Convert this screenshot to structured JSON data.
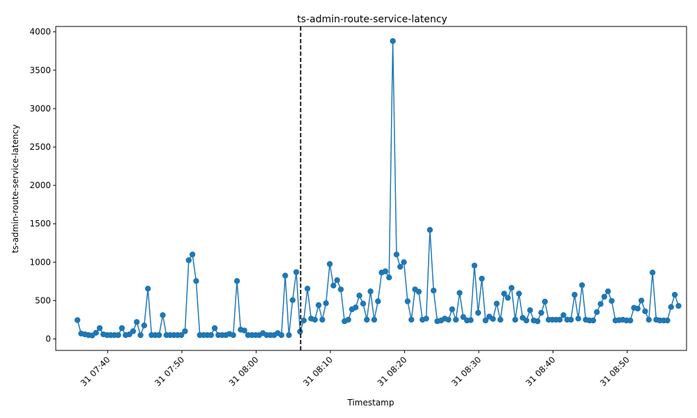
{
  "chart_data": {
    "type": "line",
    "title": "ts-admin-route-service-latency",
    "xlabel": "Timestamp",
    "ylabel": "ts-admin-route-service-latency",
    "x_unit": "minutes",
    "x_range": [
      "31 07:33",
      "31 08:58"
    ],
    "ylim": [
      -150,
      4070
    ],
    "x_ticks": [
      {
        "minute": "31 07:40",
        "label": "31 07:40"
      },
      {
        "minute": "31 07:50",
        "label": "31 07:50"
      },
      {
        "minute": "31 08:00",
        "label": "31 08:00"
      },
      {
        "minute": "31 08:10",
        "label": "31 08:10"
      },
      {
        "minute": "31 08:20",
        "label": "31 08:20"
      },
      {
        "minute": "31 08:30",
        "label": "31 08:30"
      },
      {
        "minute": "31 08:40",
        "label": "31 08:40"
      },
      {
        "minute": "31 08:50",
        "label": "31 08:50"
      }
    ],
    "y_ticks": [
      0,
      500,
      1000,
      1500,
      2000,
      2500,
      3000,
      3500,
      4000
    ],
    "marker_line": {
      "at": "31 08:06",
      "style": "dashed"
    },
    "series": [
      {
        "name": "",
        "color": "#1f77b4",
        "points": [
          [
            "31 07:35:55",
            245
          ],
          [
            "31 07:36:25",
            70
          ],
          [
            "31 07:36:55",
            60
          ],
          [
            "31 07:37:25",
            50
          ],
          [
            "31 07:37:55",
            45
          ],
          [
            "31 07:38:25",
            80
          ],
          [
            "31 07:38:55",
            140
          ],
          [
            "31 07:39:25",
            60
          ],
          [
            "31 07:39:55",
            50
          ],
          [
            "31 07:40:25",
            50
          ],
          [
            "31 07:40:55",
            50
          ],
          [
            "31 07:41:25",
            50
          ],
          [
            "31 07:41:55",
            140
          ],
          [
            "31 07:42:25",
            50
          ],
          [
            "31 07:42:55",
            60
          ],
          [
            "31 07:43:25",
            100
          ],
          [
            "31 07:43:55",
            220
          ],
          [
            "31 07:44:25",
            50
          ],
          [
            "31 07:44:55",
            175
          ],
          [
            "31 07:45:25",
            655
          ],
          [
            "31 07:45:55",
            50
          ],
          [
            "31 07:46:25",
            50
          ],
          [
            "31 07:46:55",
            50
          ],
          [
            "31 07:47:25",
            310
          ],
          [
            "31 07:47:55",
            50
          ],
          [
            "31 07:48:25",
            50
          ],
          [
            "31 07:48:55",
            50
          ],
          [
            "31 07:49:25",
            50
          ],
          [
            "31 07:49:55",
            50
          ],
          [
            "31 07:50:25",
            100
          ],
          [
            "31 07:50:55",
            1025
          ],
          [
            "31 07:51:25",
            1100
          ],
          [
            "31 07:51:55",
            755
          ],
          [
            "31 07:52:25",
            50
          ],
          [
            "31 07:52:55",
            50
          ],
          [
            "31 07:53:25",
            50
          ],
          [
            "31 07:53:55",
            50
          ],
          [
            "31 07:54:25",
            140
          ],
          [
            "31 07:54:55",
            50
          ],
          [
            "31 07:55:25",
            50
          ],
          [
            "31 07:55:55",
            50
          ],
          [
            "31 07:56:25",
            65
          ],
          [
            "31 07:56:55",
            50
          ],
          [
            "31 07:57:25",
            755
          ],
          [
            "31 07:57:55",
            120
          ],
          [
            "31 07:58:25",
            110
          ],
          [
            "31 07:58:55",
            50
          ],
          [
            "31 07:59:25",
            50
          ],
          [
            "31 07:59:55",
            50
          ],
          [
            "31 08:00:25",
            50
          ],
          [
            "31 08:00:55",
            75
          ],
          [
            "31 08:01:25",
            50
          ],
          [
            "31 08:01:55",
            50
          ],
          [
            "31 08:02:25",
            50
          ],
          [
            "31 08:02:55",
            75
          ],
          [
            "31 08:03:25",
            50
          ],
          [
            "31 08:03:55",
            825
          ],
          [
            "31 08:04:25",
            50
          ],
          [
            "31 08:04:55",
            505
          ],
          [
            "31 08:05:25",
            870
          ],
          [
            "31 08:05:55",
            95
          ],
          [
            "31 08:06:25",
            240
          ],
          [
            "31 08:06:55",
            655
          ],
          [
            "31 08:07:25",
            265
          ],
          [
            "31 08:07:55",
            250
          ],
          [
            "31 08:08:25",
            440
          ],
          [
            "31 08:08:55",
            250
          ],
          [
            "31 08:09:25",
            465
          ],
          [
            "31 08:09:55",
            975
          ],
          [
            "31 08:10:25",
            695
          ],
          [
            "31 08:10:55",
            765
          ],
          [
            "31 08:11:25",
            645
          ],
          [
            "31 08:11:55",
            230
          ],
          [
            "31 08:12:25",
            250
          ],
          [
            "31 08:12:55",
            385
          ],
          [
            "31 08:13:25",
            410
          ],
          [
            "31 08:13:55",
            565
          ],
          [
            "31 08:14:25",
            460
          ],
          [
            "31 08:14:55",
            250
          ],
          [
            "31 08:15:25",
            620
          ],
          [
            "31 08:15:55",
            250
          ],
          [
            "31 08:16:25",
            490
          ],
          [
            "31 08:16:55",
            865
          ],
          [
            "31 08:17:25",
            880
          ],
          [
            "31 08:17:55",
            800
          ],
          [
            "31 08:18:25",
            3880
          ],
          [
            "31 08:18:55",
            1100
          ],
          [
            "31 08:19:25",
            940
          ],
          [
            "31 08:19:55",
            1000
          ],
          [
            "31 08:20:25",
            490
          ],
          [
            "31 08:20:55",
            250
          ],
          [
            "31 08:21:25",
            645
          ],
          [
            "31 08:21:55",
            615
          ],
          [
            "31 08:22:25",
            250
          ],
          [
            "31 08:22:55",
            265
          ],
          [
            "31 08:23:25",
            1420
          ],
          [
            "31 08:23:55",
            630
          ],
          [
            "31 08:24:25",
            230
          ],
          [
            "31 08:24:55",
            240
          ],
          [
            "31 08:25:25",
            265
          ],
          [
            "31 08:25:55",
            250
          ],
          [
            "31 08:26:25",
            385
          ],
          [
            "31 08:26:55",
            250
          ],
          [
            "31 08:27:25",
            600
          ],
          [
            "31 08:27:55",
            285
          ],
          [
            "31 08:28:25",
            240
          ],
          [
            "31 08:28:55",
            245
          ],
          [
            "31 08:29:25",
            955
          ],
          [
            "31 08:29:55",
            340
          ],
          [
            "31 08:30:25",
            785
          ],
          [
            "31 08:30:55",
            240
          ],
          [
            "31 08:31:25",
            290
          ],
          [
            "31 08:31:55",
            260
          ],
          [
            "31 08:32:25",
            460
          ],
          [
            "31 08:32:55",
            250
          ],
          [
            "31 08:33:25",
            590
          ],
          [
            "31 08:33:55",
            535
          ],
          [
            "31 08:34:25",
            665
          ],
          [
            "31 08:34:55",
            250
          ],
          [
            "31 08:35:25",
            590
          ],
          [
            "31 08:35:55",
            275
          ],
          [
            "31 08:36:25",
            240
          ],
          [
            "31 08:36:55",
            375
          ],
          [
            "31 08:37:25",
            240
          ],
          [
            "31 08:37:55",
            230
          ],
          [
            "31 08:38:25",
            340
          ],
          [
            "31 08:38:55",
            485
          ],
          [
            "31 08:39:25",
            250
          ],
          [
            "31 08:39:55",
            250
          ],
          [
            "31 08:40:25",
            250
          ],
          [
            "31 08:40:55",
            250
          ],
          [
            "31 08:41:25",
            310
          ],
          [
            "31 08:41:55",
            250
          ],
          [
            "31 08:42:25",
            250
          ],
          [
            "31 08:42:55",
            575
          ],
          [
            "31 08:43:25",
            265
          ],
          [
            "31 08:43:55",
            700
          ],
          [
            "31 08:44:25",
            250
          ],
          [
            "31 08:44:55",
            240
          ],
          [
            "31 08:45:25",
            240
          ],
          [
            "31 08:45:55",
            350
          ],
          [
            "31 08:46:25",
            455
          ],
          [
            "31 08:46:55",
            550
          ],
          [
            "31 08:47:25",
            620
          ],
          [
            "31 08:47:55",
            495
          ],
          [
            "31 08:48:25",
            240
          ],
          [
            "31 08:48:55",
            245
          ],
          [
            "31 08:49:25",
            250
          ],
          [
            "31 08:49:55",
            240
          ],
          [
            "31 08:50:25",
            240
          ],
          [
            "31 08:50:55",
            405
          ],
          [
            "31 08:51:25",
            395
          ],
          [
            "31 08:51:55",
            500
          ],
          [
            "31 08:52:25",
            360
          ],
          [
            "31 08:52:55",
            250
          ],
          [
            "31 08:53:25",
            865
          ],
          [
            "31 08:53:55",
            250
          ],
          [
            "31 08:54:25",
            240
          ],
          [
            "31 08:54:55",
            240
          ],
          [
            "31 08:55:25",
            240
          ],
          [
            "31 08:55:55",
            415
          ],
          [
            "31 08:56:25",
            575
          ],
          [
            "31 08:56:55",
            430
          ]
        ]
      }
    ],
    "grid": false,
    "legend": "none"
  }
}
